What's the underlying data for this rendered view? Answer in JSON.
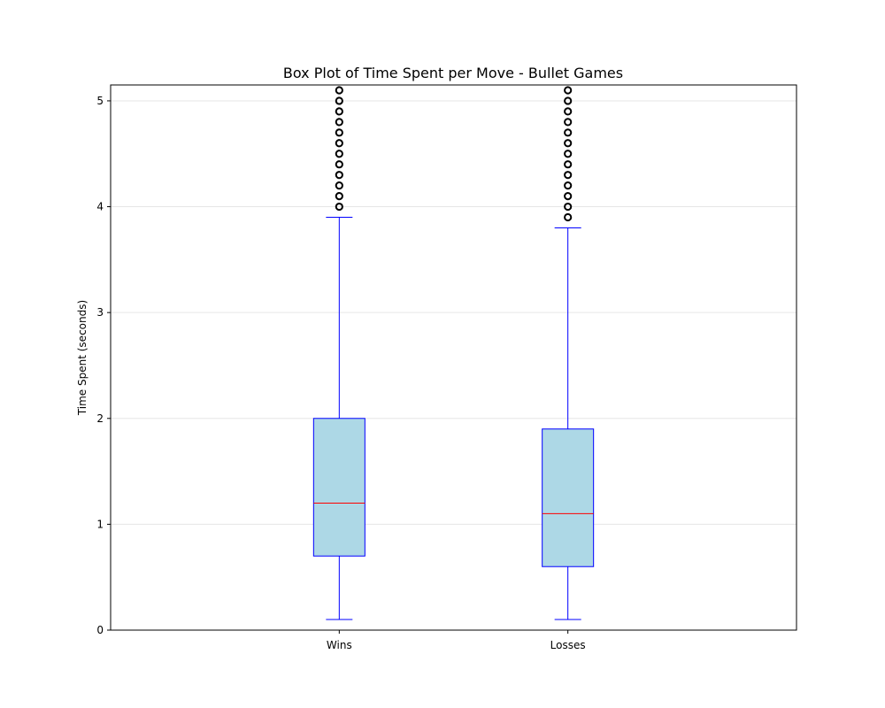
{
  "chart_data": {
    "type": "box",
    "title": "Box Plot of Time Spent per Move - Bullet Games",
    "xlabel": "",
    "ylabel": "Time Spent (seconds)",
    "ylim": [
      0,
      5.15
    ],
    "yticks": [
      "0",
      "1",
      "2",
      "3",
      "4",
      "5"
    ],
    "grid": "y",
    "categories": [
      "Wins",
      "Losses"
    ],
    "boxes": [
      {
        "category": "Wins",
        "whisker_low": 0.1,
        "q1": 0.7,
        "median": 1.2,
        "q3": 2.0,
        "whisker_high": 3.9,
        "outliers": [
          4.0,
          4.1,
          4.2,
          4.3,
          4.4,
          4.5,
          4.6,
          4.7,
          4.8,
          4.9,
          5.0,
          5.1
        ]
      },
      {
        "category": "Losses",
        "whisker_low": 0.1,
        "q1": 0.6,
        "median": 1.1,
        "q3": 1.9,
        "whisker_high": 3.8,
        "outliers": [
          3.9,
          4.0,
          4.1,
          4.2,
          4.3,
          4.4,
          4.5,
          4.6,
          4.7,
          4.8,
          4.9,
          5.0,
          5.1
        ]
      }
    ],
    "colors": {
      "box_fill": "#add8e6",
      "box_edge": "#0000ff",
      "median": "#ff0000",
      "outlier_edge": "#000000",
      "grid": "#e6e6e6"
    }
  }
}
